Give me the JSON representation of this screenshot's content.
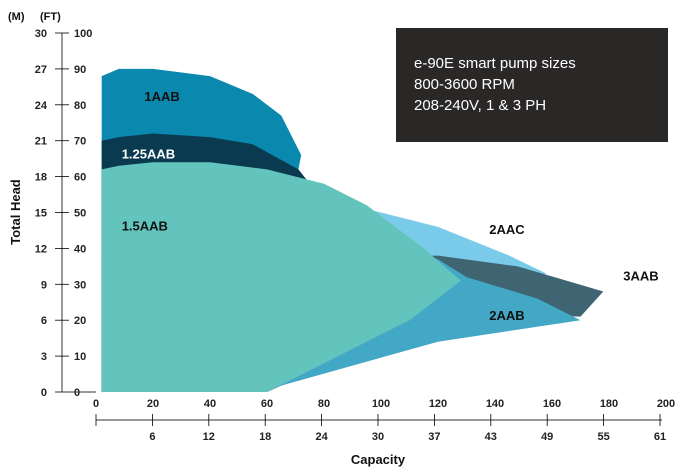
{
  "chart_data": {
    "type": "area",
    "title": "",
    "xlabel": "Capacity",
    "ylabel": "Total Head",
    "x_unit_primary": "",
    "x_unit_secondary": "",
    "y_unit_primary": "(FT)",
    "y_unit_secondary": "(M)",
    "xlim": [
      0,
      200
    ],
    "ylim": [
      0,
      100
    ],
    "x_ticks_primary": [
      "0",
      "20",
      "40",
      "60",
      "80",
      "100",
      "120",
      "140",
      "160",
      "180",
      "200"
    ],
    "x_ticks_secondary": [
      "6",
      "12",
      "18",
      "24",
      "30",
      "37",
      "43",
      "49",
      "55",
      "61"
    ],
    "y_ticks_primary": [
      "0",
      "10",
      "20",
      "30",
      "40",
      "50",
      "60",
      "70",
      "80",
      "90",
      "100"
    ],
    "y_ticks_secondary": [
      "0",
      "3",
      "6",
      "9",
      "12",
      "15",
      "18",
      "21",
      "24",
      "27",
      "30"
    ],
    "grid": false,
    "legend": "none",
    "info_box": {
      "lines": [
        "e-90E smart pump sizes",
        "800-3600 RPM",
        "208-240V, 1 & 3 PH"
      ],
      "color": "#2a2727",
      "position": "top-right"
    },
    "series": [
      {
        "name": "2AAC",
        "color": "#7acbea",
        "label_color": "#111111",
        "label_at": [
          138,
          44
        ],
        "points": [
          [
            2,
            0
          ],
          [
            60,
            0
          ],
          [
            140,
            28
          ],
          [
            158,
            33
          ],
          [
            145,
            38
          ],
          [
            120,
            46
          ],
          [
            90,
            52
          ],
          [
            70,
            58
          ],
          [
            60,
            60
          ],
          [
            2,
            60
          ]
        ]
      },
      {
        "name": "3AAB",
        "color": "#3f6472",
        "label_color": "#111111",
        "label_at": [
          185,
          31
        ],
        "points": [
          [
            2,
            0
          ],
          [
            60,
            0
          ],
          [
            120,
            22
          ],
          [
            170,
            21
          ],
          [
            178,
            28
          ],
          [
            148,
            35
          ],
          [
            120,
            38
          ],
          [
            2,
            38
          ]
        ]
      },
      {
        "name": "2AAB",
        "color": "#42a8c6",
        "label_color": "#111111",
        "label_at": [
          138,
          20
        ],
        "points": [
          [
            2,
            0
          ],
          [
            57,
            0
          ],
          [
            120,
            14
          ],
          [
            170,
            20
          ],
          [
            155,
            26
          ],
          [
            130,
            32
          ],
          [
            120,
            37
          ],
          [
            70,
            50
          ],
          [
            2,
            50
          ]
        ]
      },
      {
        "name": "1AAB",
        "color": "#0a88ae",
        "label_color": "#111111",
        "label_at": [
          17,
          81
        ],
        "points": [
          [
            2,
            0
          ],
          [
            60,
            0
          ],
          [
            70,
            40
          ],
          [
            70,
            58
          ],
          [
            72,
            66
          ],
          [
            65,
            77
          ],
          [
            55,
            83
          ],
          [
            40,
            88
          ],
          [
            20,
            90
          ],
          [
            8,
            90
          ],
          [
            2,
            88
          ]
        ]
      },
      {
        "name": "1.25AAB",
        "color": "#0a3a4f",
        "label_color": "#ffffff",
        "label_at": [
          9,
          65
        ],
        "points": [
          [
            2,
            0
          ],
          [
            60,
            0
          ],
          [
            70,
            40
          ],
          [
            75,
            58
          ],
          [
            71,
            62
          ],
          [
            55,
            69
          ],
          [
            40,
            71
          ],
          [
            20,
            72
          ],
          [
            8,
            71
          ],
          [
            2,
            70
          ]
        ]
      },
      {
        "name": "1.5AAB",
        "color": "#62c4bc",
        "label_color": "#111111",
        "label_at": [
          9,
          45
        ],
        "points": [
          [
            2,
            0
          ],
          [
            20,
            0
          ],
          [
            40,
            0
          ],
          [
            60,
            0
          ],
          [
            110,
            20
          ],
          [
            128,
            31
          ],
          [
            115,
            40
          ],
          [
            95,
            52
          ],
          [
            80,
            58
          ],
          [
            60,
            62
          ],
          [
            40,
            64
          ],
          [
            20,
            64
          ],
          [
            8,
            63
          ],
          [
            2,
            62
          ]
        ]
      }
    ]
  }
}
